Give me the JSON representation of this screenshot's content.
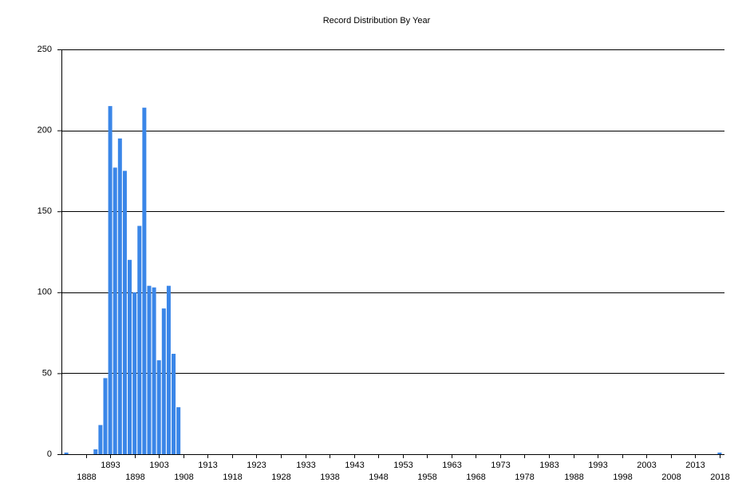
{
  "chart_data": {
    "type": "bar",
    "title": "Record Distribution By Year",
    "x": [
      1884,
      1890,
      1891,
      1892,
      1893,
      1894,
      1895,
      1896,
      1897,
      1898,
      1899,
      1900,
      1901,
      1902,
      1903,
      1904,
      1905,
      1906,
      1907,
      2018
    ],
    "values": [
      1,
      3,
      18,
      47,
      215,
      177,
      195,
      175,
      120,
      100,
      141,
      214,
      104,
      103,
      58,
      90,
      104,
      62,
      29,
      1
    ],
    "color": "#3a86e8",
    "xlim": [
      1883,
      2019
    ],
    "xticks": [
      1888,
      1893,
      1898,
      1903,
      1908,
      1913,
      1918,
      1923,
      1928,
      1933,
      1938,
      1943,
      1948,
      1953,
      1958,
      1963,
      1968,
      1973,
      1978,
      1983,
      1988,
      1993,
      1998,
      2003,
      2008,
      2013,
      2018
    ],
    "ylim": [
      0,
      250
    ],
    "yticks": [
      0,
      50,
      100,
      150,
      200,
      250
    ],
    "grid": true
  }
}
